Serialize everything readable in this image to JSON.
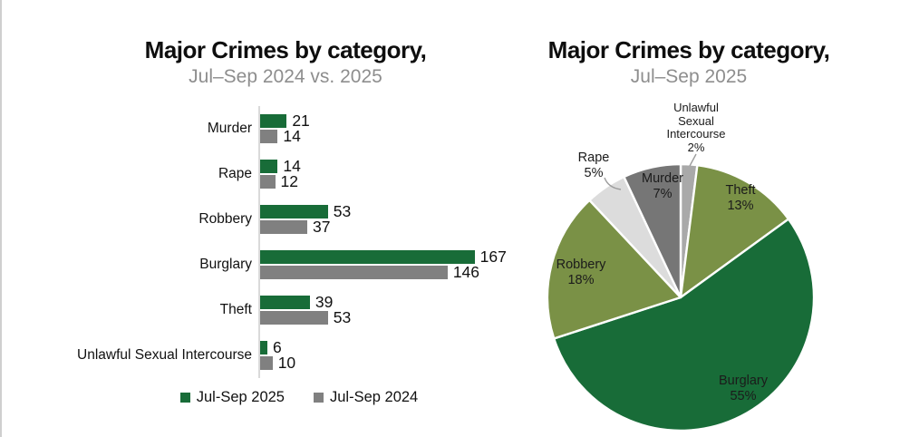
{
  "page": {
    "background": "#ffffff",
    "left_edge_line_color": "#cfcfcf"
  },
  "colors": {
    "green_2025": "#186c38",
    "gray_2024": "#808080",
    "title_text": "#0e0e0e",
    "subtitle_text": "#8e8e8e",
    "axis_line": "#d9d9d9"
  },
  "chart_data": [
    {
      "type": "bar",
      "orientation": "horizontal",
      "title": "Major Crimes by category,",
      "subtitle": "Jul–Sep 2024 vs. 2025",
      "categories": [
        "Murder",
        "Rape",
        "Robbery",
        "Burglary",
        "Theft",
        "Unlawful Sexual Intercourse"
      ],
      "series": [
        {
          "name": "Jul-Sep 2025",
          "color": "#186c38",
          "values": [
            21,
            14,
            53,
            167,
            39,
            6
          ]
        },
        {
          "name": "Jul-Sep 2024",
          "color": "#808080",
          "values": [
            14,
            12,
            37,
            146,
            53,
            10
          ]
        }
      ],
      "value_labels": true,
      "legend_position": "bottom",
      "grid": false,
      "xlim": [
        0,
        180
      ]
    },
    {
      "type": "pie",
      "title": "Major Crimes by category,",
      "subtitle": "Jul–Sep 2025",
      "start_angle_deg_from_top": 0,
      "direction": "clockwise",
      "slices": [
        {
          "label": "Unlawful Sexual Intercourse",
          "pct": 2,
          "color": "#a9a9a9",
          "label_position": "outside"
        },
        {
          "label": "Theft",
          "pct": 13,
          "color": "#7a9146",
          "label_position": "inside"
        },
        {
          "label": "Burglary",
          "pct": 55,
          "color": "#186c38",
          "label_position": "inside"
        },
        {
          "label": "Robbery",
          "pct": 18,
          "color": "#7a9146",
          "label_position": "inside"
        },
        {
          "label": "Rape",
          "pct": 5,
          "color": "#dcdcdc",
          "label_position": "outside"
        },
        {
          "label": "Murder",
          "pct": 7,
          "color": "#767676",
          "label_position": "inside"
        }
      ]
    }
  ]
}
